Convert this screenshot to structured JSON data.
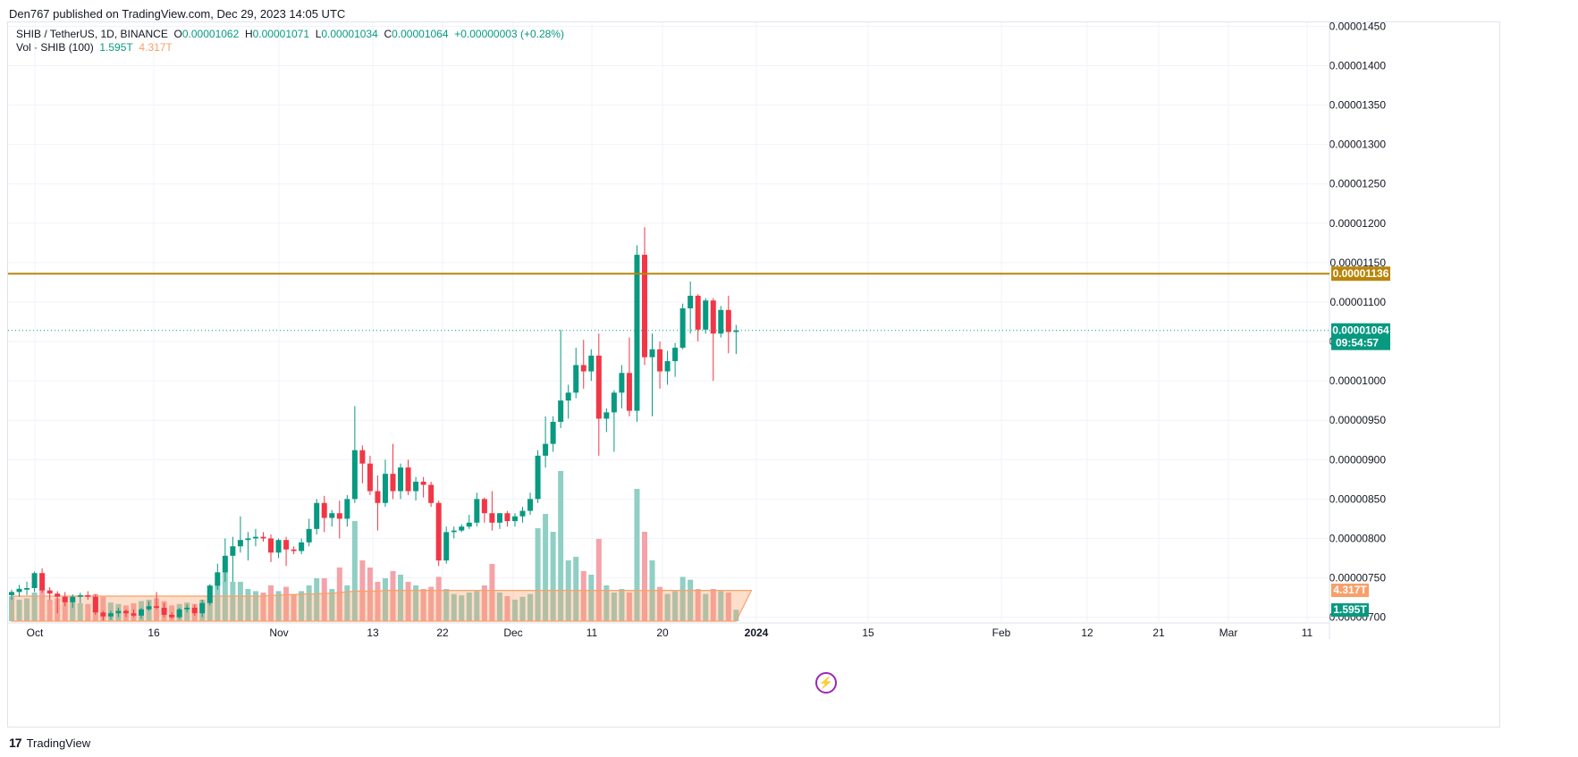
{
  "publisher": "Den767 published on TradingView.com, Dec 29, 2023 14:05 UTC",
  "legend": {
    "symbol": "SHIB / TetherUS, 1D, BINANCE",
    "o_label": "O",
    "o": "0.00001062",
    "h_label": "H",
    "h": "0.00001071",
    "l_label": "L",
    "l": "0.00001034",
    "c_label": "C",
    "c": "0.00001064",
    "change": "+0.00000003 (+0.28%)",
    "vol_label": "Vol · SHIB (100)",
    "vol_value": "1.595T",
    "vol_ma": "4.317T"
  },
  "footer": {
    "brand": "TradingView"
  },
  "colors": {
    "up": "#089981",
    "down": "#f23645",
    "up_vol": "#8fcfc4",
    "down_vol": "#f5a3a8",
    "vol_ma": "#f7a06b",
    "level_line": "#b8860b",
    "grid": "#f0f3fa"
  },
  "chart_data": {
    "type": "candlestick",
    "title": "SHIB / TetherUS, 1D, BINANCE",
    "ylim": [
      6.95e-06,
      1.455e-05
    ],
    "y_ticks": [
      "0.00000700",
      "0.00000750",
      "0.00000800",
      "0.00000850",
      "0.00000900",
      "0.00000950",
      "0.00001000",
      "0.00001050",
      "0.00001100",
      "0.00001150",
      "0.00001200",
      "0.00001250",
      "0.00001300",
      "0.00001350",
      "0.00001400",
      "0.00001450"
    ],
    "x_ticks": [
      "Oct",
      "16",
      "Nov",
      "13",
      "22",
      "Dec",
      "11",
      "20",
      "2024",
      "15",
      "Feb",
      "12",
      "21",
      "Mar",
      "11"
    ],
    "horizontal_line": {
      "value": 1.136e-05,
      "label": "0.00001136"
    },
    "last_price": {
      "value": 1.064e-05,
      "label": "0.00001064",
      "countdown": "09:54:57"
    },
    "volume_badges": {
      "ma": "4.317T",
      "volume": "1.595T"
    },
    "candles": [
      {
        "o": 7.28e-06,
        "h": 7.35e-06,
        "l": 7.22e-06,
        "c": 7.32e-06,
        "v": 0.35
      },
      {
        "o": 7.32e-06,
        "h": 7.41e-06,
        "l": 7.26e-06,
        "c": 7.36e-06,
        "v": 0.3
      },
      {
        "o": 7.35e-06,
        "h": 7.45e-06,
        "l": 7.28e-06,
        "c": 7.37e-06,
        "v": 0.32
      },
      {
        "o": 7.37e-06,
        "h": 7.58e-06,
        "l": 7.32e-06,
        "c": 7.56e-06,
        "v": 0.4
      },
      {
        "o": 7.56e-06,
        "h": 7.62e-06,
        "l": 7.31e-06,
        "c": 7.34e-06,
        "v": 0.45
      },
      {
        "o": 7.34e-06,
        "h": 7.38e-06,
        "l": 7.22e-06,
        "c": 7.3e-06,
        "v": 0.3
      },
      {
        "o": 7.3e-06,
        "h": 7.33e-06,
        "l": 7.05e-06,
        "c": 7.26e-06,
        "v": 0.32
      },
      {
        "o": 7.26e-06,
        "h": 7.32e-06,
        "l": 7.14e-06,
        "c": 7.19e-06,
        "v": 0.28
      },
      {
        "o": 7.19e-06,
        "h": 7.29e-06,
        "l": 7.12e-06,
        "c": 7.26e-06,
        "v": 0.27
      },
      {
        "o": 7.26e-06,
        "h": 7.31e-06,
        "l": 7.18e-06,
        "c": 7.28e-06,
        "v": 0.25
      },
      {
        "o": 7.28e-06,
        "h": 7.33e-06,
        "l": 7.22e-06,
        "c": 7.26e-06,
        "v": 0.24
      },
      {
        "o": 7.26e-06,
        "h": 7.29e-06,
        "l": 7.03e-06,
        "c": 7.06e-06,
        "v": 0.38
      },
      {
        "o": 7.06e-06,
        "h": 7.08e-06,
        "l": 6.96e-06,
        "c": 7.01e-06,
        "v": 0.34
      },
      {
        "o": 7.01e-06,
        "h": 7.08e-06,
        "l": 6.97e-06,
        "c": 7.05e-06,
        "v": 0.26
      },
      {
        "o": 7.05e-06,
        "h": 7.12e-06,
        "l": 7e-06,
        "c": 7.08e-06,
        "v": 0.24
      },
      {
        "o": 7.08e-06,
        "h": 7.1e-06,
        "l": 7e-06,
        "c": 7.05e-06,
        "v": 0.22
      },
      {
        "o": 7.05e-06,
        "h": 7.1e-06,
        "l": 7e-06,
        "c": 7.02e-06,
        "v": 0.25
      },
      {
        "o": 7.02e-06,
        "h": 7.12e-06,
        "l": 6.98e-06,
        "c": 7.1e-06,
        "v": 0.28
      },
      {
        "o": 7.1e-06,
        "h": 7.2e-06,
        "l": 7.08e-06,
        "c": 7.14e-06,
        "v": 0.3
      },
      {
        "o": 7.14e-06,
        "h": 7.32e-06,
        "l": 7.1e-06,
        "c": 7.12e-06,
        "v": 0.32
      },
      {
        "o": 7.12e-06,
        "h": 7.18e-06,
        "l": 7e-06,
        "c": 7.03e-06,
        "v": 0.28
      },
      {
        "o": 7.03e-06,
        "h": 7.06e-06,
        "l": 6.98e-06,
        "c": 7e-06,
        "v": 0.22
      },
      {
        "o": 7e-06,
        "h": 7.12e-06,
        "l": 6.98e-06,
        "c": 7.1e-06,
        "v": 0.24
      },
      {
        "o": 7.1e-06,
        "h": 7.16e-06,
        "l": 7.06e-06,
        "c": 7.12e-06,
        "v": 0.26
      },
      {
        "o": 7.12e-06,
        "h": 7.16e-06,
        "l": 7.02e-06,
        "c": 7.05e-06,
        "v": 0.24
      },
      {
        "o": 7.05e-06,
        "h": 7.22e-06,
        "l": 7e-06,
        "c": 7.18e-06,
        "v": 0.3
      },
      {
        "o": 7.18e-06,
        "h": 7.42e-06,
        "l": 7.15e-06,
        "c": 7.4e-06,
        "v": 0.5
      },
      {
        "o": 7.4e-06,
        "h": 7.68e-06,
        "l": 7.35e-06,
        "c": 7.57e-06,
        "v": 0.55
      },
      {
        "o": 7.57e-06,
        "h": 8e-06,
        "l": 7.45e-06,
        "c": 7.78e-06,
        "v": 0.7
      },
      {
        "o": 7.78e-06,
        "h": 8.02e-06,
        "l": 7.45e-06,
        "c": 7.9e-06,
        "v": 0.55
      },
      {
        "o": 7.9e-06,
        "h": 8.28e-06,
        "l": 7.82e-06,
        "c": 7.98e-06,
        "v": 0.55
      },
      {
        "o": 7.98e-06,
        "h": 8.08e-06,
        "l": 7.72e-06,
        "c": 8e-06,
        "v": 0.45
      },
      {
        "o": 8e-06,
        "h": 8.12e-06,
        "l": 7.9e-06,
        "c": 8.02e-06,
        "v": 0.42
      },
      {
        "o": 8.02e-06,
        "h": 8.08e-06,
        "l": 7.96e-06,
        "c": 8e-06,
        "v": 0.4
      },
      {
        "o": 8e-06,
        "h": 8.05e-06,
        "l": 7.7e-06,
        "c": 7.82e-06,
        "v": 0.5
      },
      {
        "o": 7.82e-06,
        "h": 8e-06,
        "l": 7.75e-06,
        "c": 7.98e-06,
        "v": 0.42
      },
      {
        "o": 7.98e-06,
        "h": 8.02e-06,
        "l": 7.65e-06,
        "c": 7.86e-06,
        "v": 0.48
      },
      {
        "o": 7.86e-06,
        "h": 7.9e-06,
        "l": 7.8e-06,
        "c": 7.84e-06,
        "v": 0.38
      },
      {
        "o": 7.84e-06,
        "h": 8e-06,
        "l": 7.8e-06,
        "c": 7.95e-06,
        "v": 0.42
      },
      {
        "o": 7.95e-06,
        "h": 8.25e-06,
        "l": 7.9e-06,
        "c": 8.12e-06,
        "v": 0.5
      },
      {
        "o": 8.12e-06,
        "h": 8.5e-06,
        "l": 8.05e-06,
        "c": 8.45e-06,
        "v": 0.6
      },
      {
        "o": 8.45e-06,
        "h": 8.54e-06,
        "l": 8.08e-06,
        "c": 8.26e-06,
        "v": 0.6
      },
      {
        "o": 8.26e-06,
        "h": 8.36e-06,
        "l": 8.15e-06,
        "c": 8.32e-06,
        "v": 0.45
      },
      {
        "o": 8.32e-06,
        "h": 8.48e-06,
        "l": 8e-06,
        "c": 8.25e-06,
        "v": 0.75
      },
      {
        "o": 8.25e-06,
        "h": 8.55e-06,
        "l": 8.15e-06,
        "c": 8.5e-06,
        "v": 0.5
      },
      {
        "o": 8.5e-06,
        "h": 9.68e-06,
        "l": 8.45e-06,
        "c": 9.12e-06,
        "v": 1.4
      },
      {
        "o": 9.12e-06,
        "h": 9.18e-06,
        "l": 8.7e-06,
        "c": 8.95e-06,
        "v": 0.85
      },
      {
        "o": 8.95e-06,
        "h": 9.05e-06,
        "l": 8.55e-06,
        "c": 8.6e-06,
        "v": 0.75
      },
      {
        "o": 8.6e-06,
        "h": 8.8e-06,
        "l": 8.1e-06,
        "c": 8.45e-06,
        "v": 0.55
      },
      {
        "o": 8.45e-06,
        "h": 9e-06,
        "l": 8.4e-06,
        "c": 8.82e-06,
        "v": 0.6
      },
      {
        "o": 8.82e-06,
        "h": 9.2e-06,
        "l": 8.5e-06,
        "c": 8.6e-06,
        "v": 0.7
      },
      {
        "o": 8.6e-06,
        "h": 8.95e-06,
        "l": 8.5e-06,
        "c": 8.9e-06,
        "v": 0.65
      },
      {
        "o": 8.9e-06,
        "h": 9e-06,
        "l": 8.55e-06,
        "c": 8.6e-06,
        "v": 0.55
      },
      {
        "o": 8.6e-06,
        "h": 8.78e-06,
        "l": 8.48e-06,
        "c": 8.72e-06,
        "v": 0.5
      },
      {
        "o": 8.72e-06,
        "h": 8.78e-06,
        "l": 8.52e-06,
        "c": 8.68e-06,
        "v": 0.45
      },
      {
        "o": 8.68e-06,
        "h": 8.72e-06,
        "l": 8.4e-06,
        "c": 8.45e-06,
        "v": 0.48
      },
      {
        "o": 8.45e-06,
        "h": 8.48e-06,
        "l": 7.65e-06,
        "c": 7.72e-06,
        "v": 0.62
      },
      {
        "o": 7.72e-06,
        "h": 8.15e-06,
        "l": 7.68e-06,
        "c": 8.08e-06,
        "v": 0.45
      },
      {
        "o": 8.08e-06,
        "h": 8.15e-06,
        "l": 8e-06,
        "c": 8.1e-06,
        "v": 0.38
      },
      {
        "o": 8.1e-06,
        "h": 8.18e-06,
        "l": 8.08e-06,
        "c": 8.15e-06,
        "v": 0.36
      },
      {
        "o": 8.15e-06,
        "h": 8.3e-06,
        "l": 8.12e-06,
        "c": 8.2e-06,
        "v": 0.4
      },
      {
        "o": 8.2e-06,
        "h": 8.58e-06,
        "l": 8.15e-06,
        "c": 8.5e-06,
        "v": 0.42
      },
      {
        "o": 8.5e-06,
        "h": 8.52e-06,
        "l": 8.2e-06,
        "c": 8.32e-06,
        "v": 0.5
      },
      {
        "o": 8.32e-06,
        "h": 8.6e-06,
        "l": 8.1e-06,
        "c": 8.2e-06,
        "v": 0.8
      },
      {
        "o": 8.2e-06,
        "h": 8.32e-06,
        "l": 8.12e-06,
        "c": 8.32e-06,
        "v": 0.4
      },
      {
        "o": 8.32e-06,
        "h": 8.35e-06,
        "l": 8.15e-06,
        "c": 8.22e-06,
        "v": 0.35
      },
      {
        "o": 8.22e-06,
        "h": 8.32e-06,
        "l": 8.15e-06,
        "c": 8.28e-06,
        "v": 0.3
      },
      {
        "o": 8.28e-06,
        "h": 8.4e-06,
        "l": 8.2e-06,
        "c": 8.35e-06,
        "v": 0.34
      },
      {
        "o": 8.35e-06,
        "h": 8.58e-06,
        "l": 8.3e-06,
        "c": 8.5e-06,
        "v": 0.38
      },
      {
        "o": 8.5e-06,
        "h": 9.12e-06,
        "l": 8.45e-06,
        "c": 9.05e-06,
        "v": 1.3
      },
      {
        "o": 9.05e-06,
        "h": 9.55e-06,
        "l": 8.9e-06,
        "c": 9.2e-06,
        "v": 1.5
      },
      {
        "o": 9.2e-06,
        "h": 9.55e-06,
        "l": 9.1e-06,
        "c": 9.48e-06,
        "v": 1.25
      },
      {
        "o": 9.48e-06,
        "h": 1.065e-05,
        "l": 9.4e-06,
        "c": 9.75e-06,
        "v": 2.1
      },
      {
        "o": 9.75e-06,
        "h": 9.95e-06,
        "l": 9.52e-06,
        "c": 9.85e-06,
        "v": 0.85
      },
      {
        "o": 9.85e-06,
        "h": 1.042e-05,
        "l": 9.78e-06,
        "c": 1.02e-05,
        "v": 0.9
      },
      {
        "o": 1.02e-05,
        "h": 1.052e-05,
        "l": 9.9e-06,
        "c": 1.012e-05,
        "v": 0.7
      },
      {
        "o": 1.012e-05,
        "h": 1.04e-05,
        "l": 1e-05,
        "c": 1.032e-05,
        "v": 0.65
      },
      {
        "o": 1.032e-05,
        "h": 1.06e-05,
        "l": 9.05e-06,
        "c": 9.52e-06,
        "v": 1.15
      },
      {
        "o": 9.52e-06,
        "h": 9.65e-06,
        "l": 9.35e-06,
        "c": 9.6e-06,
        "v": 0.5
      },
      {
        "o": 9.6e-06,
        "h": 9.88e-06,
        "l": 9.1e-06,
        "c": 9.85e-06,
        "v": 0.4
      },
      {
        "o": 9.85e-06,
        "h": 1.02e-05,
        "l": 9.65e-06,
        "c": 1.01e-05,
        "v": 0.45
      },
      {
        "o": 1.01e-05,
        "h": 1.055e-05,
        "l": 9.55e-06,
        "c": 9.62e-06,
        "v": 0.4
      },
      {
        "o": 9.62e-06,
        "h": 1.172e-05,
        "l": 9.48e-06,
        "c": 1.16e-05,
        "v": 1.85
      },
      {
        "o": 1.16e-05,
        "h": 1.195e-05,
        "l": 1.02e-05,
        "c": 1.03e-05,
        "v": 1.25
      },
      {
        "o": 1.03e-05,
        "h": 1.06e-05,
        "l": 9.55e-06,
        "c": 1.04e-05,
        "v": 0.85
      },
      {
        "o": 1.04e-05,
        "h": 1.05e-05,
        "l": 9.9e-06,
        "c": 1.012e-05,
        "v": 0.48
      },
      {
        "o": 1.012e-05,
        "h": 1.038e-05,
        "l": 9.95e-06,
        "c": 1.025e-05,
        "v": 0.38
      },
      {
        "o": 1.025e-05,
        "h": 1.048e-05,
        "l": 1.005e-05,
        "c": 1.042e-05,
        "v": 0.42
      },
      {
        "o": 1.042e-05,
        "h": 1.098e-05,
        "l": 1.04e-05,
        "c": 1.092e-05,
        "v": 0.62
      },
      {
        "o": 1.092e-05,
        "h": 1.126e-05,
        "l": 1.06e-05,
        "c": 1.108e-05,
        "v": 0.58
      },
      {
        "o": 1.108e-05,
        "h": 1.11e-05,
        "l": 1.05e-05,
        "c": 1.065e-05,
        "v": 0.45
      },
      {
        "o": 1.065e-05,
        "h": 1.105e-05,
        "l": 1.06e-05,
        "c": 1.102e-05,
        "v": 0.38
      },
      {
        "o": 1.102e-05,
        "h": 1.105e-05,
        "l": 1e-05,
        "c": 1.06e-05,
        "v": 0.45
      },
      {
        "o": 1.06e-05,
        "h": 1.095e-05,
        "l": 1.055e-05,
        "c": 1.09e-05,
        "v": 0.42
      },
      {
        "o": 1.09e-05,
        "h": 1.108e-05,
        "l": 1.035e-05,
        "c": 1.062e-05,
        "v": 0.4
      },
      {
        "o": 1.062e-05,
        "h": 1.071e-05,
        "l": 1.034e-05,
        "c": 1.064e-05,
        "v": 0.16
      }
    ],
    "volume_ma": [
      0.35,
      0.35,
      0.35,
      0.35,
      0.35,
      0.35,
      0.35,
      0.35,
      0.35,
      0.35,
      0.35,
      0.35,
      0.35,
      0.35,
      0.35,
      0.35,
      0.35,
      0.35,
      0.35,
      0.35,
      0.35,
      0.35,
      0.35,
      0.35,
      0.35,
      0.35,
      0.35,
      0.35,
      0.35,
      0.35,
      0.35,
      0.35,
      0.35,
      0.35,
      0.36,
      0.36,
      0.37,
      0.37,
      0.38,
      0.38,
      0.38,
      0.39,
      0.39,
      0.4,
      0.41,
      0.42,
      0.42,
      0.42,
      0.42,
      0.43,
      0.43,
      0.43,
      0.43,
      0.43,
      0.43,
      0.43,
      0.43,
      0.43,
      0.43,
      0.43,
      0.43,
      0.43,
      0.43,
      0.43,
      0.43,
      0.43,
      0.43,
      0.43,
      0.43,
      0.43,
      0.43,
      0.43,
      0.43,
      0.43,
      0.43,
      0.43,
      0.43,
      0.43,
      0.43,
      0.43,
      0.43,
      0.43,
      0.43,
      0.43,
      0.43,
      0.43,
      0.43,
      0.43,
      0.43,
      0.43,
      0.43,
      0.43,
      0.43,
      0.43,
      0.43,
      0.43,
      0.43,
      0.43
    ]
  }
}
